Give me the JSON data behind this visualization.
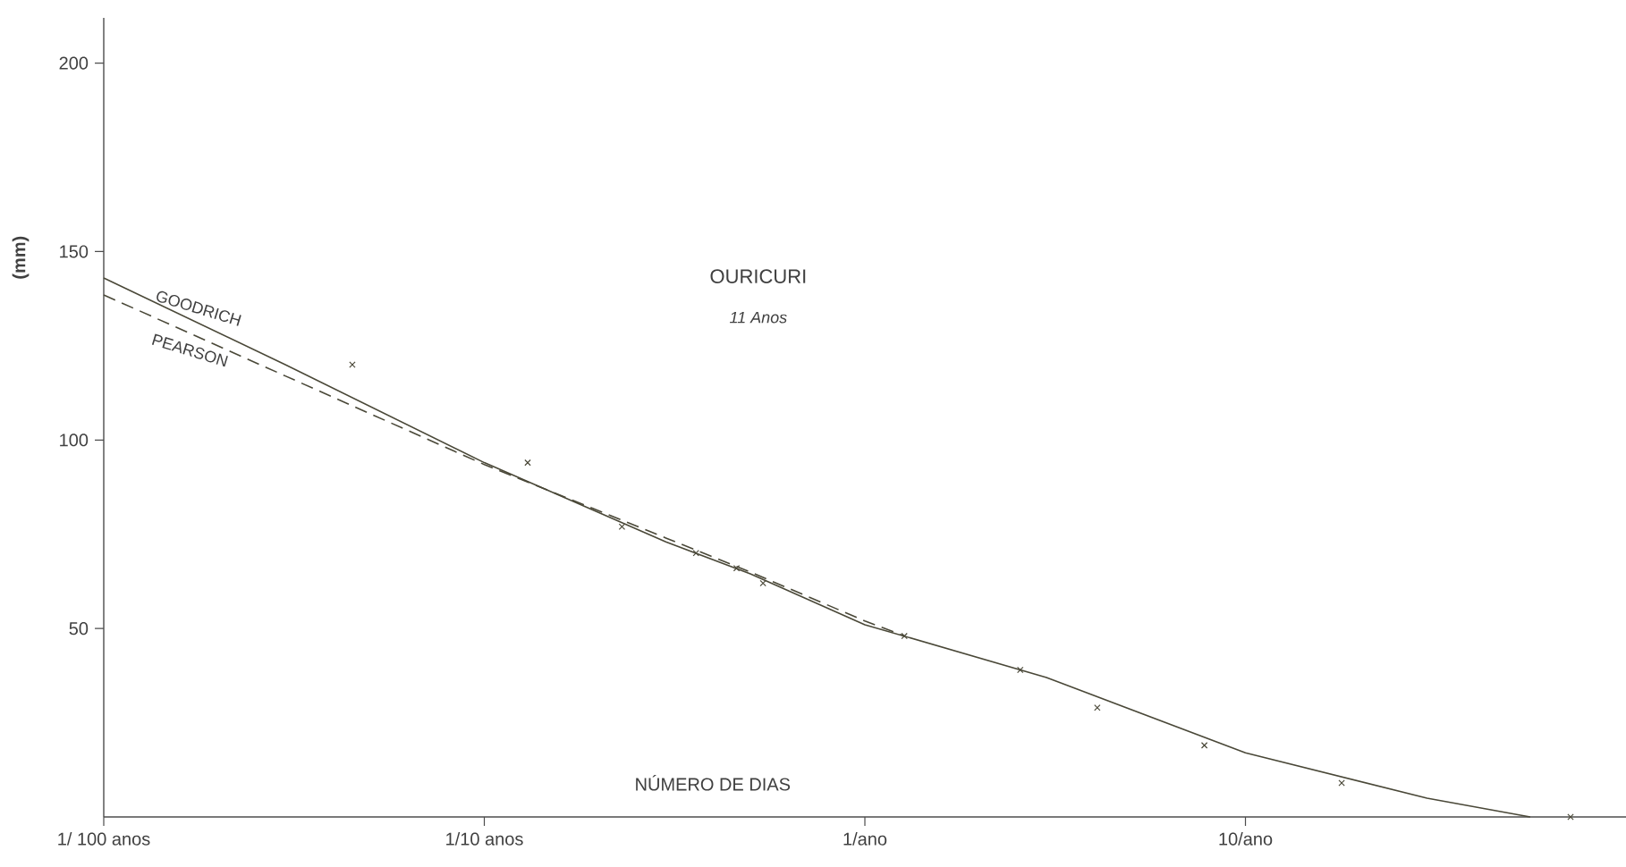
{
  "chart_data": {
    "type": "line",
    "title": "OURICURI",
    "subtitle": "11 Anos",
    "xlabel": "NÚMERO DE DIAS",
    "ylabel": "(mm)",
    "log": "x",
    "xlim": [
      0.01,
      100
    ],
    "ylim": [
      0,
      212
    ],
    "xticks": [
      {
        "value": 0.01,
        "label": "1/ 100 anos"
      },
      {
        "value": 0.1,
        "label": "1/10 anos"
      },
      {
        "value": 1,
        "label": "1/ano"
      },
      {
        "value": 10,
        "label": "10/ano"
      }
    ],
    "yticks": [
      50,
      100,
      150,
      200
    ],
    "series": [
      {
        "name": "GOODRICH",
        "line_style": "solid",
        "color": "#4a4838",
        "x": [
          0.01,
          0.03,
          0.1,
          0.3,
          0.5,
          1,
          3,
          10,
          30,
          56
        ],
        "values": [
          143,
          120,
          94,
          73,
          64.5,
          51,
          37,
          17,
          5,
          0
        ]
      },
      {
        "name": "PEARSON",
        "line_style": "dashed",
        "color": "#4a4838",
        "x": [
          0.01,
          0.03,
          0.1,
          0.3,
          0.5,
          1,
          1.27
        ],
        "values": [
          138.5,
          117,
          93.5,
          74,
          65,
          52,
          48
        ]
      },
      {
        "type": "scatter",
        "marker": "cross",
        "color": "#4a4838",
        "x": [
          0.045,
          0.13,
          0.23,
          0.36,
          0.46,
          0.54,
          1.27,
          2.56,
          4.08,
          7.8,
          17.9,
          71.5
        ],
        "values": [
          120,
          94,
          77,
          70,
          66,
          62,
          48,
          39,
          29,
          19,
          9,
          0
        ]
      }
    ]
  }
}
